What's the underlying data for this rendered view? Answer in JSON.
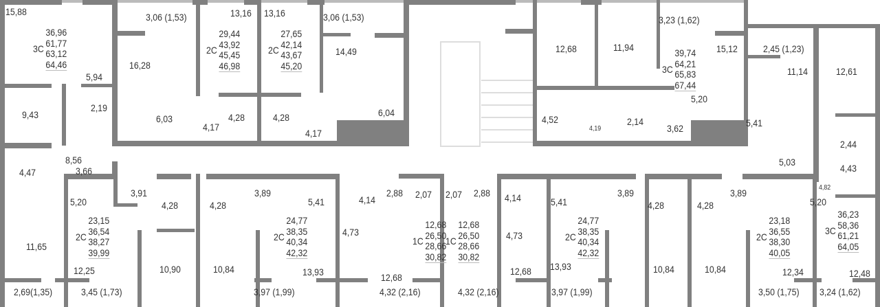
{
  "colors": {
    "wall": "#808080",
    "text": "#333333"
  },
  "apartments": {
    "a1": {
      "type": "3С",
      "values": [
        "36,96",
        "61,77",
        "63,12",
        "64,46"
      ]
    },
    "a2": {
      "type": "2С",
      "values": [
        "29,44",
        "43,92",
        "45,45",
        "46,98"
      ]
    },
    "a3": {
      "type": "2С",
      "values": [
        "27,65",
        "42,14",
        "43,67",
        "45,20"
      ]
    },
    "a4": {
      "type": "3С",
      "values": [
        "39,74",
        "64,21",
        "65,83",
        "67,44"
      ]
    },
    "b1": {
      "type": "2С",
      "values": [
        "23,15",
        "36,54",
        "38,27",
        "39,99"
      ]
    },
    "b2": {
      "type": "2С",
      "values": [
        "24,77",
        "38,35",
        "40,34",
        "42,32"
      ]
    },
    "b3": {
      "type": "1С",
      "values": [
        "12,68",
        "26,50",
        "28,66",
        "30,82"
      ]
    },
    "b4": {
      "type": "1С",
      "values": [
        "12,68",
        "26,50",
        "28,66",
        "30,82"
      ]
    },
    "b5": {
      "type": "2С",
      "values": [
        "24,77",
        "38,35",
        "40,34",
        "42,32"
      ]
    },
    "b6": {
      "type": "2С",
      "values": [
        "23,18",
        "36,55",
        "38,30",
        "40,05"
      ]
    },
    "b7": {
      "type": "3С",
      "values": [
        "36,23",
        "58,36",
        "61,21",
        "64,05"
      ]
    }
  },
  "rooms": [
    "15,88",
    "3,06 (1,53)",
    "13,16",
    "13,16",
    "3,06 (1,53)",
    "16,28",
    "5,94",
    "9,43",
    "2,19",
    "6,03",
    "4,17",
    "4,28",
    "4,28",
    "4,17",
    "14,49",
    "6,04",
    "3,23 (1,62)",
    "12,68",
    "11,94",
    "15,12",
    "2,45 (1,23)",
    "11,14",
    "12,61",
    "4,52",
    "4,19",
    "2,14",
    "3,62",
    "5,20",
    "5,41",
    "2,44",
    "4,47",
    "8,56",
    "3,66",
    "5,20",
    "3,91",
    "4,28",
    "4,28",
    "11,65",
    "12,25",
    "10,90",
    "10,84",
    "2,69(1,35)",
    "3,45 (1,73)",
    "3,89",
    "5,41",
    "4,14",
    "4,73",
    "2,88",
    "2,07",
    "2,07",
    "2,88",
    "13,93",
    "12,68",
    "3,97 (1,99)",
    "4,32 (2,16)",
    "4,32 (2,16)",
    "4,14",
    "5,41",
    "3,89",
    "4,73",
    "12,68",
    "13,93",
    "3,97 (1,99)",
    "4,28",
    "4,28",
    "10,84",
    "10,84",
    "3,89",
    "5,20",
    "5,03",
    "4,43",
    "4,82",
    "12,34",
    "12,48",
    "3,50 (1,75)",
    "3,24 (1,62)"
  ]
}
